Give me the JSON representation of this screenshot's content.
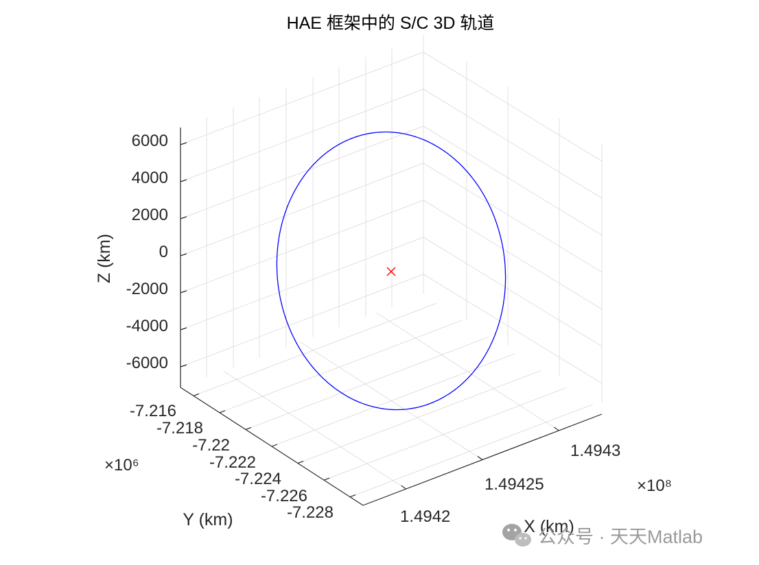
{
  "chart_data": {
    "type": "line",
    "title": "HAE 框架中的 S/C 3D 轨道",
    "xlabel": "X (km)",
    "ylabel": "Y (km)",
    "zlabel": "Z (km)",
    "x_ticks": [
      "1.4942",
      "1.49425",
      "1.4943"
    ],
    "x_exponent": "×10⁸",
    "y_ticks": [
      "-7.216",
      "-7.218",
      "-7.22",
      "-7.222",
      "-7.224",
      "-7.226",
      "-7.228"
    ],
    "y_exponent": "×10⁶",
    "z_ticks": [
      "6000",
      "4000",
      "2000",
      "0",
      "-2000",
      "-4000",
      "-6000"
    ],
    "z_values": [
      6000,
      4000,
      2000,
      0,
      -2000,
      -4000,
      -6000
    ],
    "zlim": [
      -7000,
      7000
    ],
    "grid": true,
    "series": [
      {
        "color": "#0000ff",
        "marker": "none"
      },
      {
        "color": "#ff0000",
        "marker": "x"
      }
    ]
  },
  "watermark": {
    "text": "公众号 · 天天Matlab",
    "icon": "wechat-icon"
  }
}
